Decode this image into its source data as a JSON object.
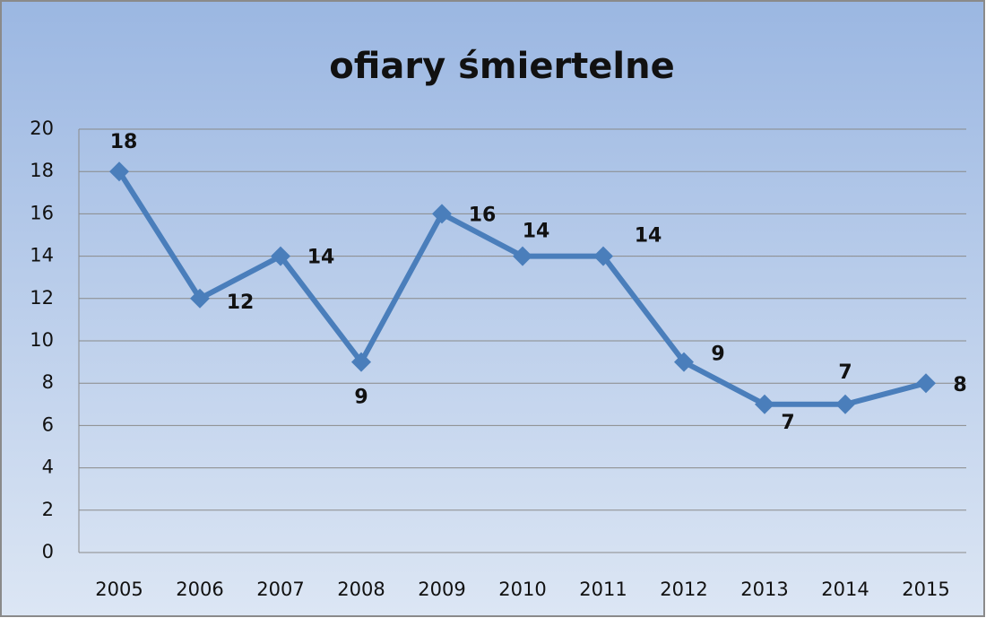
{
  "chart_data": {
    "type": "line",
    "title": "ofiary śmiertelne",
    "categories": [
      "2005",
      "2006",
      "2007",
      "2008",
      "2009",
      "2010",
      "2011",
      "2012",
      "2013",
      "2014",
      "2015"
    ],
    "values": [
      18,
      12,
      14,
      9,
      16,
      14,
      14,
      9,
      7,
      7,
      8
    ],
    "color": "#4a7ebb",
    "ylim": [
      0,
      20
    ],
    "yticks": [
      0,
      2,
      4,
      6,
      8,
      10,
      12,
      14,
      16,
      18,
      20
    ],
    "grid": true
  }
}
